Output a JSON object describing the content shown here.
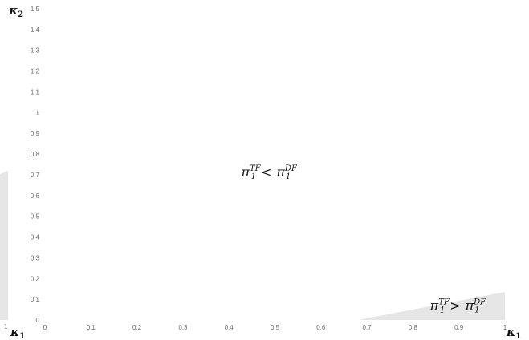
{
  "chart_data": {
    "type": "area",
    "title": "",
    "xlabel": {
      "symbol": "κ",
      "subscript": "1"
    },
    "ylabel": {
      "symbol": "κ",
      "subscript": "2"
    },
    "xlim": [
      0,
      1
    ],
    "ylim": [
      0,
      1.5
    ],
    "x_ticks": [
      "0",
      "0.1",
      "0.2",
      "0.3",
      "0.4",
      "0.5",
      "0.6",
      "0.7",
      "0.8",
      "0.9",
      "1"
    ],
    "y_ticks": [
      "0",
      "0.1",
      "0.2",
      "0.3",
      "0.4",
      "0.5",
      "0.6",
      "0.7",
      "0.8",
      "0.9",
      "1",
      "1.1",
      "1.2",
      "1.3",
      "1.4",
      "1.5"
    ],
    "grid": false,
    "shaded_region": {
      "color": "#e6e6e6",
      "boundary": [
        {
          "x": 0.68,
          "y": 0.0
        },
        {
          "x": 1.0,
          "y": 0.135
        }
      ]
    },
    "left_panel_fragment": {
      "label": {
        "symbol": "κ",
        "subscript": "1"
      },
      "tick": "1"
    },
    "annotations": [
      {
        "name": "upper-region",
        "base": "π",
        "sub": "1",
        "sup_left": "TF",
        "relation": "<",
        "sup_right": "DF",
        "x": 0.5,
        "y": 0.7
      },
      {
        "name": "lower-region",
        "base": "π",
        "sub": "1",
        "sup_left": "TF",
        "relation": ">",
        "sup_right": "DF",
        "x": 0.9,
        "y": 0.04
      }
    ]
  }
}
